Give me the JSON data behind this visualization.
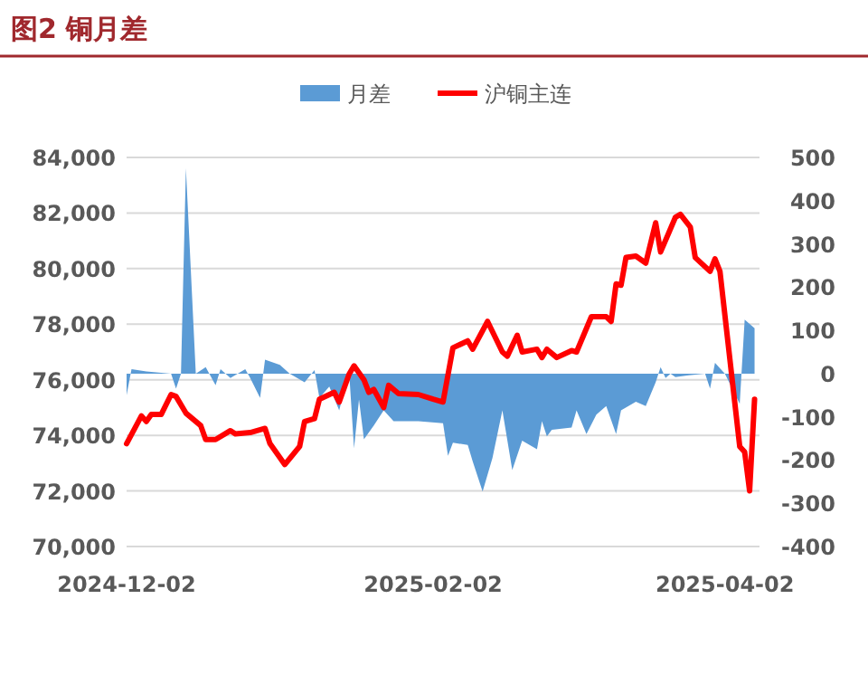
{
  "chart_data": {
    "type": "line",
    "title": "图2  铜月差",
    "xlim": [
      "2024-12-02",
      "2025-04-09"
    ],
    "xticks": [
      "2024-12-02",
      "2025-02-02",
      "2025-04-02"
    ],
    "ylim": [
      70000,
      84000
    ],
    "yticks": [
      {
        "value": 70000,
        "label": "70,000"
      },
      {
        "value": 72000,
        "label": "72,000"
      },
      {
        "value": 74000,
        "label": "74,000"
      },
      {
        "value": 76000,
        "label": "76,000"
      },
      {
        "value": 78000,
        "label": "78,000"
      },
      {
        "value": 80000,
        "label": "80,000"
      },
      {
        "value": 82000,
        "label": "82,000"
      },
      {
        "value": 84000,
        "label": "84,000"
      }
    ],
    "y2lim": [
      -400,
      500
    ],
    "y2ticks": [
      -400,
      -300,
      -200,
      -100,
      0,
      100,
      200,
      300,
      400,
      500
    ],
    "grid": "y",
    "legend": "top",
    "series": [
      {
        "name": "月差",
        "type": "area",
        "axis": "y2",
        "color": "#5b9bd5",
        "x": [
          "2024-12-02",
          "2024-12-03",
          "2024-12-06",
          "2024-12-11",
          "2024-12-12",
          "2024-12-13",
          "2024-12-14",
          "2024-12-16",
          "2024-12-18",
          "2024-12-20",
          "2024-12-21",
          "2024-12-23",
          "2024-12-26",
          "2024-12-27",
          "2024-12-29",
          "2024-12-30",
          "2025-01-02",
          "2025-01-04",
          "2025-01-07",
          "2025-01-09",
          "2025-01-10",
          "2025-01-12",
          "2025-01-14",
          "2025-01-16",
          "2025-01-17",
          "2025-01-18",
          "2025-01-19",
          "2025-01-21",
          "2025-01-23",
          "2025-01-25",
          "2025-01-30",
          "2025-02-04",
          "2025-02-05",
          "2025-02-06",
          "2025-02-09",
          "2025-02-10",
          "2025-02-12",
          "2025-02-14",
          "2025-02-16",
          "2025-02-18",
          "2025-02-20",
          "2025-02-23",
          "2025-02-24",
          "2025-02-25",
          "2025-02-26",
          "2025-03-02",
          "2025-03-03",
          "2025-03-05",
          "2025-03-07",
          "2025-03-09",
          "2025-03-11",
          "2025-03-12",
          "2025-03-15",
          "2025-03-17",
          "2025-03-19",
          "2025-03-20",
          "2025-03-21",
          "2025-03-22",
          "2025-03-23",
          "2025-03-25",
          "2025-03-29",
          "2025-03-30",
          "2025-03-31",
          "2025-04-02",
          "2025-04-05",
          "2025-04-06",
          "2025-04-08"
        ],
        "values": [
          -50,
          10,
          5,
          0,
          -35,
          0,
          475,
          0,
          15,
          -27,
          10,
          -10,
          10,
          -10,
          -56,
          32,
          20,
          0,
          -20,
          8,
          -56,
          -30,
          -85,
          5,
          -173,
          -60,
          -152,
          -120,
          -85,
          -110,
          -110,
          -115,
          -190,
          -160,
          -165,
          -203,
          -273,
          -195,
          -85,
          -223,
          -155,
          -175,
          -110,
          -145,
          -130,
          -125,
          -85,
          -140,
          -95,
          -75,
          -140,
          -85,
          -65,
          -75,
          -20,
          15,
          -10,
          0,
          -8,
          -5,
          0,
          -35,
          25,
          0,
          -70,
          125,
          105
        ]
      },
      {
        "name": "沪铜主连",
        "color": "#ff0000",
        "x": [
          "2024-12-02",
          "2024-12-05",
          "2024-12-06",
          "2024-12-07",
          "2024-12-09",
          "2024-12-11",
          "2024-12-12",
          "2024-12-14",
          "2024-12-17",
          "2024-12-18",
          "2024-12-20",
          "2024-12-23",
          "2024-12-24",
          "2024-12-27",
          "2024-12-30",
          "2024-12-31",
          "2025-01-03",
          "2025-01-06",
          "2025-01-07",
          "2025-01-09",
          "2025-01-10",
          "2025-01-13",
          "2025-01-14",
          "2025-01-16",
          "2025-01-17",
          "2025-01-19",
          "2025-01-20",
          "2025-01-21",
          "2025-01-23",
          "2025-01-24",
          "2025-01-26",
          "2025-01-30",
          "2025-02-02",
          "2025-02-04",
          "2025-02-06",
          "2025-02-09",
          "2025-02-10",
          "2025-02-13",
          "2025-02-16",
          "2025-02-17",
          "2025-02-19",
          "2025-02-20",
          "2025-02-23",
          "2025-02-24",
          "2025-02-25",
          "2025-02-27",
          "2025-03-02",
          "2025-03-03",
          "2025-03-06",
          "2025-03-09",
          "2025-03-10",
          "2025-03-11",
          "2025-03-12",
          "2025-03-13",
          "2025-03-15",
          "2025-03-17",
          "2025-03-19",
          "2025-03-20",
          "2025-03-23",
          "2025-03-24",
          "2025-03-26",
          "2025-03-27",
          "2025-03-30",
          "2025-03-31",
          "2025-04-01",
          "2025-04-05",
          "2025-04-06",
          "2025-04-07",
          "2025-04-08"
        ],
        "values": [
          73700,
          74700,
          74500,
          74750,
          74750,
          75470,
          75400,
          74800,
          74350,
          73850,
          73850,
          74170,
          74050,
          74100,
          74250,
          73700,
          72950,
          73600,
          74500,
          74600,
          75300,
          75550,
          75200,
          76200,
          76500,
          76000,
          75550,
          75650,
          75000,
          75800,
          75500,
          75470,
          75300,
          75200,
          77150,
          77400,
          77100,
          78100,
          77000,
          76850,
          77600,
          77000,
          77100,
          76800,
          77100,
          76800,
          77050,
          77000,
          78270,
          78270,
          78100,
          79450,
          79400,
          80400,
          80450,
          80200,
          81650,
          80600,
          81850,
          81950,
          81500,
          80400,
          79900,
          80350,
          79900,
          73600,
          73400,
          72000,
          75300
        ]
      }
    ]
  }
}
